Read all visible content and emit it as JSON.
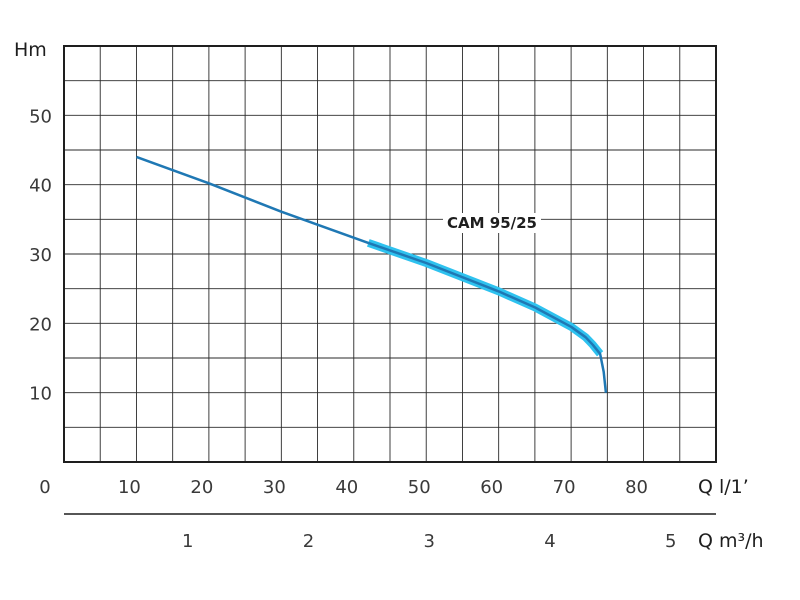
{
  "chart_data": {
    "type": "line",
    "x_axis": {
      "label": "Q l/1’",
      "range": [
        0,
        90
      ],
      "ticks": [
        0,
        10,
        20,
        30,
        40,
        50,
        60,
        70,
        80
      ]
    },
    "x2_axis": {
      "label": "Q m³/h",
      "ticks": [
        1,
        2,
        3,
        4,
        5
      ]
    },
    "y_axis": {
      "label": "Hm",
      "range": [
        0,
        60
      ],
      "ticks": [
        10,
        20,
        30,
        40,
        50
      ]
    },
    "grid": true,
    "series": [
      {
        "name": "CAM 95/25",
        "color": "#1f78b4",
        "highlight_color": "#2ec2ef",
        "highlight_from_x": 42,
        "highlight_to_x": 74,
        "x": [
          10,
          20,
          30,
          42,
          50,
          60,
          65,
          70,
          72,
          73,
          74,
          74.5,
          74.8
        ],
        "y": [
          44,
          40.2,
          36.1,
          31.6,
          28.7,
          24.6,
          22.3,
          19.5,
          18,
          16.9,
          15.6,
          13,
          10
        ]
      }
    ]
  }
}
